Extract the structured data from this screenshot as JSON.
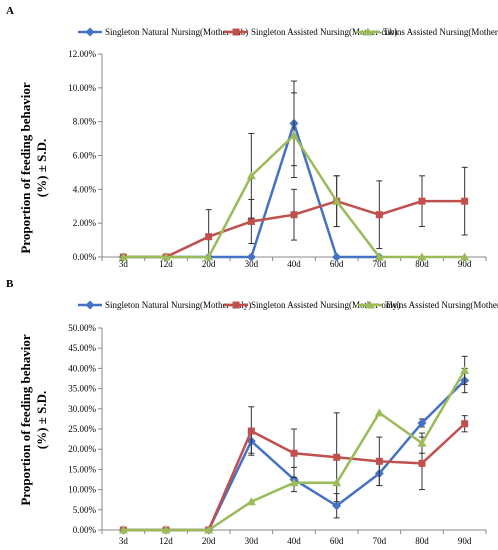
{
  "series_styles": [
    {
      "color": "#4472C4",
      "marker": "diamond"
    },
    {
      "color": "#C0504D",
      "marker": "square"
    },
    {
      "color": "#9BBB59",
      "marker": "triangle"
    }
  ],
  "chart_data": [
    {
      "type": "line",
      "panel_label": "A",
      "ylabel_line1": "Proportion  of feeding behavior",
      "ylabel_line2": "(%)  ± S.D.",
      "x": [
        "3d",
        "12d",
        "20d",
        "30d",
        "40d",
        "60d",
        "70d",
        "80d",
        "90d"
      ],
      "ylim": [
        0,
        12
      ],
      "yticks": [
        "0.00%",
        "2.00%",
        "4.00%",
        "6.00%",
        "8.00%",
        "10.00%",
        "12.00%"
      ],
      "grid": false,
      "legend_position": "top",
      "series": [
        {
          "name": "Singleton Natural Nursing(Mother-cub)",
          "values": [
            0,
            0,
            0,
            0,
            7.9,
            0,
            0,
            null,
            null
          ],
          "errors": [
            [
              0,
              0,
              0,
              0,
              2.5,
              0,
              0,
              null,
              null
            ]
          ]
        },
        {
          "name": "Singleton Assisted Nursing(Mother-cub)",
          "values": [
            0,
            0,
            1.2,
            2.1,
            2.5,
            3.3,
            2.5,
            3.3,
            3.3
          ],
          "errors": [
            0,
            0,
            1.6,
            1.3,
            1.5,
            1.5,
            2.0,
            1.5,
            2.0
          ]
        },
        {
          "name": "Twins Assisted Nursing(Mother-cub)",
          "values": [
            0,
            0,
            0,
            4.8,
            7.2,
            3.3,
            0,
            0,
            0
          ],
          "errors": [
            0,
            0,
            0,
            2.5,
            2.5,
            1.5,
            0,
            0,
            0
          ]
        }
      ]
    },
    {
      "type": "line",
      "panel_label": "B",
      "ylabel_line1": "Proportion  of feeding behavior",
      "ylabel_line2": "(%)  ± S.D.",
      "x": [
        "3d",
        "12d",
        "20d",
        "30d",
        "40d",
        "60d",
        "70d",
        "80d",
        "90d"
      ],
      "ylim": [
        0,
        50
      ],
      "yticks": [
        "0.00%",
        "5.00%",
        "10.00%",
        "15.00%",
        "20.00%",
        "25.00%",
        "30.00%",
        "35.00%",
        "40.00%",
        "45.00%",
        "50.00%"
      ],
      "grid": false,
      "legend_position": "top",
      "series": [
        {
          "name": "Singleton Natural Nursing(Mother-only)",
          "values": [
            0,
            0,
            0,
            22.0,
            12.5,
            6.0,
            14.0,
            26.5,
            37.0
          ],
          "errors": [
            0,
            0,
            0,
            3.0,
            3.0,
            3.0,
            3.0,
            1.0,
            3.0
          ]
        },
        {
          "name": "Singleton Assisted Nursing(Mother-only)",
          "values": [
            0,
            0,
            0,
            24.5,
            19.0,
            18.0,
            17.0,
            16.5,
            26.3
          ],
          "errors": [
            0,
            0,
            0,
            6.0,
            6.0,
            11.0,
            6.0,
            6.5,
            2.0
          ]
        },
        {
          "name": "Twins Assisted Nursing(Mother-only)",
          "values": [
            0,
            0,
            0,
            7.0,
            11.7,
            11.7,
            29.0,
            21.5,
            39.5
          ],
          "errors": [
            0,
            0,
            0,
            0,
            0,
            0,
            0,
            2.5,
            3.5
          ]
        }
      ]
    }
  ]
}
